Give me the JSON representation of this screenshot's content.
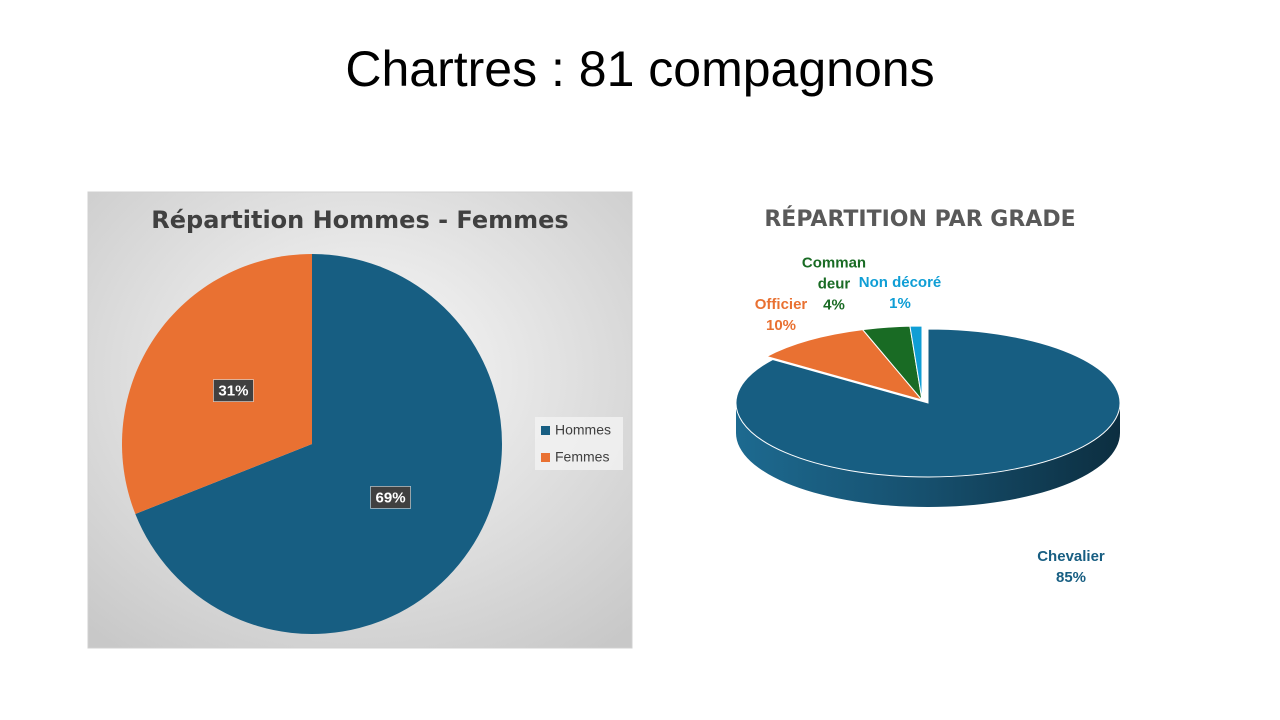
{
  "title": "Chartres : 81 compagnons",
  "chart_data": [
    {
      "type": "pie",
      "title": "Répartition Hommes - Femmes",
      "categories": [
        "Hommes",
        "Femmes"
      ],
      "values": [
        69,
        31
      ],
      "value_labels": [
        "69%",
        "31%"
      ],
      "colors": [
        "#175e82",
        "#e97132"
      ],
      "legend": "right"
    },
    {
      "type": "pie3d",
      "title": "RÉPARTITION PAR GRADE",
      "categories": [
        "Chevalier",
        "Officier",
        "Commandeur",
        "Non décoré"
      ],
      "values": [
        85,
        10,
        4,
        1
      ],
      "value_labels": [
        "85%",
        "10%",
        "4%",
        "1%"
      ],
      "colors": [
        "#175e82",
        "#e97132",
        "#196b24",
        "#0f9ed5"
      ]
    }
  ]
}
